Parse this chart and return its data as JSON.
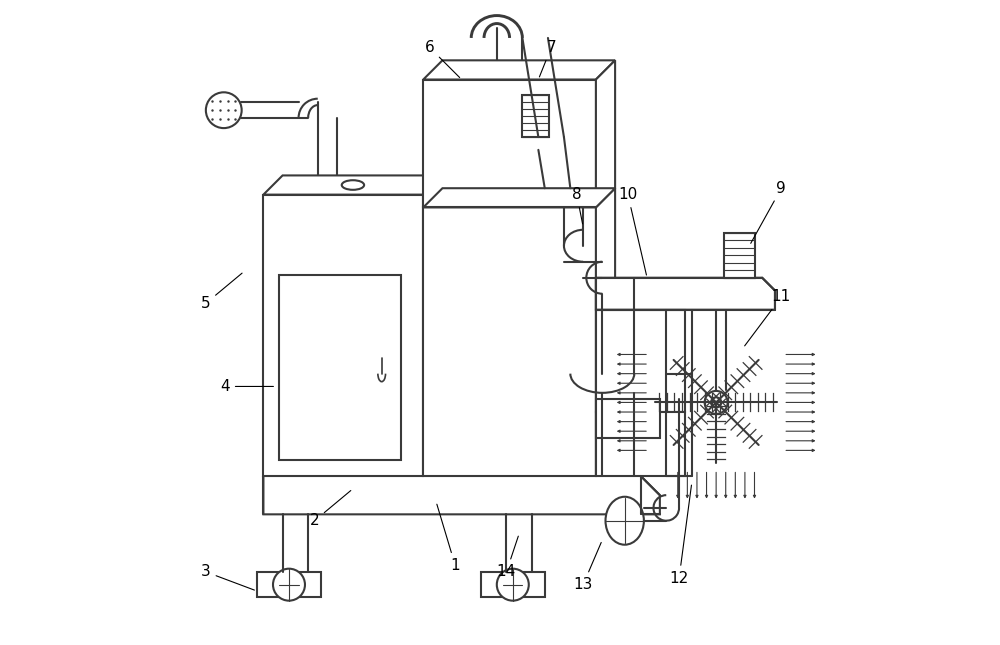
{
  "bg_color": "#ffffff",
  "line_color": "#3a3a3a",
  "line_width": 1.5,
  "labels": {
    "1": [
      0.43,
      0.12,
      0.4,
      0.22
    ],
    "2": [
      0.21,
      0.19,
      0.27,
      0.24
    ],
    "3": [
      0.04,
      0.11,
      0.12,
      0.08
    ],
    "4": [
      0.07,
      0.4,
      0.15,
      0.4
    ],
    "5": [
      0.04,
      0.53,
      0.1,
      0.58
    ],
    "6": [
      0.39,
      0.93,
      0.44,
      0.88
    ],
    "7": [
      0.58,
      0.93,
      0.56,
      0.88
    ],
    "8": [
      0.62,
      0.7,
      0.63,
      0.65
    ],
    "9": [
      0.94,
      0.71,
      0.89,
      0.62
    ],
    "10": [
      0.7,
      0.7,
      0.73,
      0.57
    ],
    "11": [
      0.94,
      0.54,
      0.88,
      0.46
    ],
    "12": [
      0.78,
      0.1,
      0.8,
      0.25
    ],
    "13": [
      0.63,
      0.09,
      0.66,
      0.16
    ],
    "14": [
      0.51,
      0.11,
      0.53,
      0.17
    ]
  }
}
